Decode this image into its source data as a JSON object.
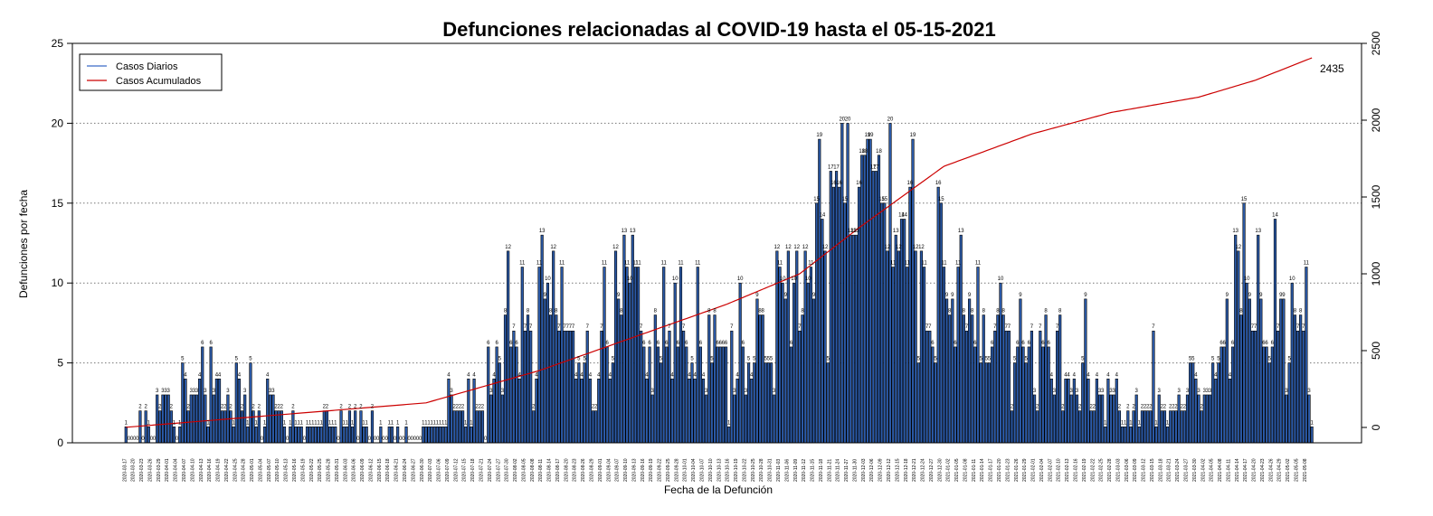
{
  "chart_data": {
    "type": "bar",
    "title": "Defunciones relacionadas al COVID-19 hasta el 05-15-2021",
    "xlabel": "Fecha de la Defunción",
    "ylabel": "Defunciones por fecha",
    "ylim": [
      0,
      25
    ],
    "y_ticks": [
      0,
      5,
      10,
      15,
      20,
      25
    ],
    "y2lim": [
      -100,
      2500
    ],
    "y2_ticks": [
      0,
      500,
      1000,
      1500,
      2000,
      2500
    ],
    "grid": "horizontal dotted",
    "legend_position": "top-left",
    "start_date": "2020-03-17",
    "end_date": "2021-05-14",
    "date_tick_every_days": 3,
    "final_cumulative": 2435,
    "final_cumulative_label": "2435",
    "colors": {
      "bar_fill": "#2b5aa8",
      "bar_edge": "#000000",
      "cumulative_line": "#cc0000",
      "daily_legend": "#3a6bc8",
      "grid": "#777777"
    },
    "series": [
      {
        "name": "Casos Diarios",
        "type": "bar",
        "axis": "left"
      },
      {
        "name": "Casos Acumulados",
        "type": "line",
        "axis": "right"
      }
    ],
    "daily_values": [
      1,
      0,
      0,
      0,
      0,
      2,
      0,
      2,
      1,
      0,
      0,
      3,
      2,
      3,
      3,
      3,
      2,
      1,
      0,
      1,
      5,
      4,
      2,
      3,
      3,
      3,
      4,
      6,
      3,
      1,
      6,
      3,
      4,
      4,
      2,
      2,
      3,
      2,
      1,
      5,
      4,
      2,
      3,
      1,
      5,
      2,
      1,
      2,
      0,
      1,
      4,
      3,
      3,
      2,
      2,
      2,
      1,
      0,
      1,
      2,
      1,
      1,
      1,
      0,
      1,
      1,
      1,
      1,
      1,
      1,
      2,
      2,
      1,
      1,
      1,
      0,
      2,
      1,
      1,
      2,
      1,
      2,
      0,
      2,
      1,
      1,
      0,
      2,
      0,
      0,
      1,
      0,
      0,
      1,
      1,
      0,
      1,
      0,
      0,
      1,
      0,
      0,
      0,
      0,
      0,
      1,
      1,
      1,
      1,
      1,
      1,
      1,
      1,
      1,
      4,
      3,
      2,
      2,
      2,
      2,
      1,
      4,
      1,
      4,
      2,
      2,
      2,
      0,
      6,
      3,
      4,
      6,
      5,
      3,
      8,
      12,
      6,
      7,
      6,
      4,
      11,
      7,
      8,
      7,
      2,
      4,
      11,
      13,
      9,
      10,
      8,
      12,
      8,
      7,
      11,
      7,
      7,
      7,
      7,
      4,
      5,
      4,
      5,
      7,
      4,
      2,
      2,
      4,
      7,
      11,
      6,
      4,
      5,
      12,
      9,
      8,
      13,
      11,
      10,
      13,
      11,
      11,
      7,
      6,
      4,
      6,
      3,
      8,
      6,
      5,
      11,
      6,
      7,
      4,
      10,
      6,
      11,
      7,
      6,
      4,
      5,
      4,
      11,
      6,
      4,
      3,
      8,
      5,
      8,
      6,
      6,
      6,
      6,
      1,
      7,
      3,
      4,
      10,
      6,
      3,
      5,
      4,
      5,
      9,
      8,
      8,
      5,
      5,
      5,
      3,
      12,
      11,
      10,
      9,
      12,
      6,
      10,
      12,
      7,
      8,
      12,
      10,
      11,
      9,
      15,
      19,
      14,
      12,
      5,
      17,
      16,
      17,
      16,
      20,
      15,
      20,
      13,
      13,
      13,
      16,
      18,
      18,
      19,
      19,
      17,
      17,
      18,
      15,
      15,
      12,
      20,
      11,
      13,
      12,
      14,
      14,
      11,
      16,
      19,
      12,
      5,
      12,
      11,
      7,
      7,
      6,
      5,
      16,
      15,
      11,
      9,
      8,
      9,
      6,
      11,
      13,
      8,
      7,
      9,
      8,
      6,
      11,
      5,
      8,
      5,
      5,
      6,
      7,
      8,
      10,
      8,
      7,
      7,
      2,
      5,
      6,
      9,
      6,
      5,
      6,
      7,
      3,
      2,
      7,
      6,
      8,
      6,
      4,
      3,
      7,
      8,
      2,
      4,
      4,
      3,
      4,
      3,
      2,
      5,
      9,
      4,
      2,
      2,
      4,
      3,
      3,
      1,
      4,
      3,
      3,
      4,
      2,
      1,
      1,
      2,
      1,
      2,
      3,
      1,
      2,
      2,
      2,
      2,
      7,
      1,
      3,
      2,
      2,
      1,
      2,
      2,
      2,
      3,
      2,
      2,
      3,
      5,
      5,
      4,
      3,
      2,
      3,
      3,
      3,
      5,
      4,
      5,
      6,
      6,
      9,
      4,
      6,
      13,
      12,
      8,
      15,
      10,
      9,
      7,
      7,
      13,
      9,
      6,
      6,
      5,
      6,
      14,
      7,
      9,
      9,
      3,
      5,
      10,
      8,
      7,
      8,
      7,
      11,
      3,
      1
    ],
    "cumulative_checkpoints": [
      {
        "date": "2020-03-17",
        "value": 1
      },
      {
        "date": "2020-07-01",
        "value": 160
      },
      {
        "date": "2020-08-10",
        "value": 370
      },
      {
        "date": "2020-10-15",
        "value": 800
      },
      {
        "date": "2020-11-10",
        "value": 1000
      },
      {
        "date": "2020-12-01",
        "value": 1300
      },
      {
        "date": "2020-12-31",
        "value": 1700
      },
      {
        "date": "2021-01-31",
        "value": 1910
      },
      {
        "date": "2021-02-28",
        "value": 2050
      },
      {
        "date": "2021-03-31",
        "value": 2150
      },
      {
        "date": "2021-04-20",
        "value": 2260
      },
      {
        "date": "2021-05-14",
        "value": 2435
      }
    ]
  }
}
